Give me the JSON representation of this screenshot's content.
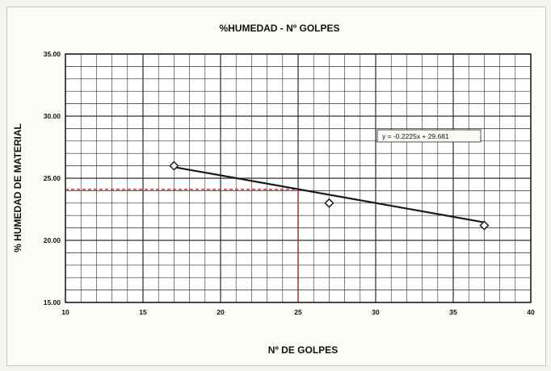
{
  "chart_data": {
    "type": "scatter",
    "title": "%HUMEDAD - Nº GOLPES",
    "xlabel": "Nº DE GOLPES",
    "ylabel": "% HUMEDAD DE MATERIAL",
    "xlim": [
      10,
      40
    ],
    "ylim": [
      15,
      35
    ],
    "x_ticks": [
      10,
      15,
      20,
      25,
      30,
      35,
      40
    ],
    "y_ticks": [
      15,
      20,
      25,
      30,
      35
    ],
    "x_tick_labels": [
      "10",
      "15",
      "20",
      "25",
      "30",
      "35",
      "40"
    ],
    "y_tick_labels": [
      "15.00",
      "20.00",
      "25.00",
      "30.00",
      "35.00"
    ],
    "grid": true,
    "series": [
      {
        "points": [
          {
            "x": 17,
            "y": 26.0
          },
          {
            "x": 27,
            "y": 23.0
          },
          {
            "x": 37,
            "y": 21.2
          }
        ]
      }
    ],
    "trendline": {
      "slope": -0.2225,
      "intercept": 29.681,
      "x_range": [
        17,
        37
      ],
      "equation": "y = -0.2225x + 29.681"
    },
    "reference": {
      "x": 25,
      "y": 24.1
    },
    "colors": {
      "series": "#1a1a1a",
      "reference": "#d63a3a",
      "grid": "#2a2a2a"
    }
  }
}
